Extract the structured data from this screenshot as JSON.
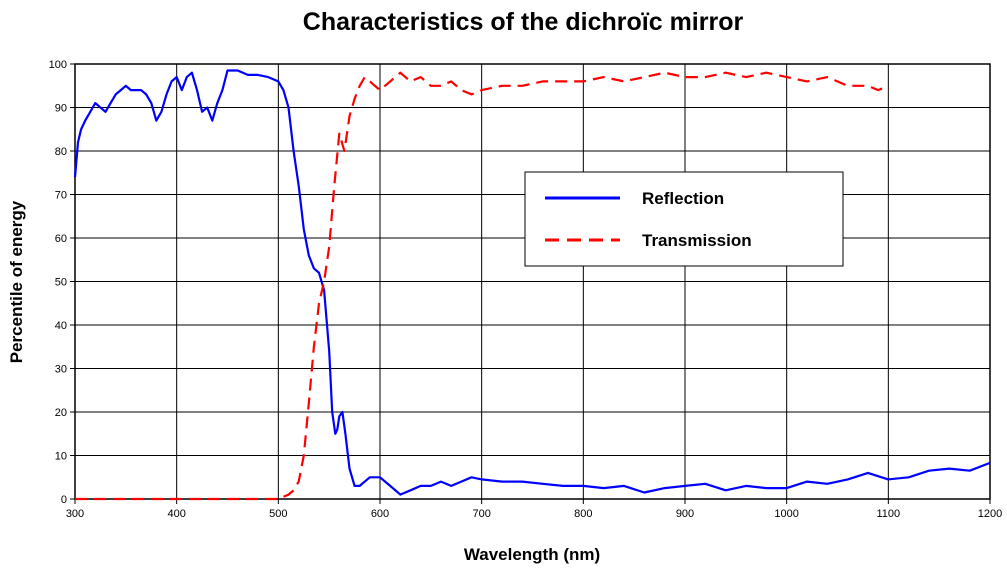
{
  "chart_data": {
    "type": "line",
    "title": "Characteristics of the dichroïc mirror",
    "xlabel": "Wavelength (nm)",
    "ylabel": "Percentile of energy",
    "xlim": [
      300,
      1200
    ],
    "ylim": [
      0,
      100
    ],
    "x_ticks": [
      300,
      400,
      500,
      600,
      700,
      800,
      900,
      1000,
      1100,
      1200
    ],
    "y_ticks": [
      0,
      10,
      20,
      30,
      40,
      50,
      60,
      70,
      80,
      90,
      100
    ],
    "grid": true,
    "legend_position": "right-center",
    "series": [
      {
        "name": "Reflection",
        "color": "#0000ff",
        "style": "solid",
        "x": [
          300,
          303,
          306,
          310,
          315,
          320,
          325,
          330,
          335,
          340,
          345,
          350,
          355,
          360,
          365,
          370,
          375,
          380,
          385,
          390,
          395,
          400,
          405,
          410,
          415,
          420,
          425,
          430,
          435,
          440,
          445,
          450,
          460,
          470,
          480,
          490,
          500,
          505,
          510,
          515,
          520,
          525,
          530,
          535,
          540,
          545,
          550,
          553,
          556,
          558,
          560,
          563,
          566,
          570,
          575,
          580,
          590,
          600,
          610,
          620,
          630,
          640,
          650,
          660,
          670,
          680,
          690,
          700,
          720,
          740,
          760,
          780,
          800,
          820,
          840,
          860,
          880,
          900,
          920,
          940,
          960,
          980,
          1000,
          1020,
          1040,
          1060,
          1080,
          1100,
          1120,
          1140,
          1160,
          1180,
          1200
        ],
        "values": [
          74,
          82,
          85,
          87,
          89,
          91,
          90,
          89,
          91,
          93,
          94,
          95,
          94,
          94,
          94,
          93,
          91,
          87,
          89,
          93,
          96,
          97,
          94,
          97,
          98,
          94,
          89,
          90,
          87,
          91,
          94,
          98.5,
          98.5,
          97.5,
          97.5,
          97,
          96,
          94,
          90,
          80,
          72,
          62,
          56,
          53,
          52,
          48,
          34,
          20,
          15,
          16,
          19,
          20,
          15,
          7,
          3,
          3,
          5,
          5,
          3,
          1,
          2,
          3,
          3,
          4,
          3,
          4,
          5,
          4.5,
          4,
          4,
          3.5,
          3,
          3,
          2.5,
          3,
          1.5,
          2.5,
          3,
          3.5,
          2,
          3,
          2.5,
          2.5,
          4,
          3.5,
          4.5,
          6,
          4.5,
          5,
          6.5,
          7,
          6.5,
          8.3
        ]
      },
      {
        "name": "Transmission",
        "color": "#ff0000",
        "style": "dashed",
        "x": [
          300,
          400,
          490,
          500,
          505,
          510,
          515,
          520,
          525,
          530,
          535,
          540,
          545,
          550,
          555,
          560,
          565,
          570,
          575,
          580,
          585,
          590,
          595,
          600,
          610,
          620,
          630,
          640,
          650,
          660,
          670,
          680,
          690,
          700,
          720,
          740,
          760,
          780,
          800,
          820,
          840,
          860,
          880,
          900,
          920,
          940,
          960,
          980,
          1000,
          1020,
          1040,
          1060,
          1080,
          1090,
          1100
        ],
        "values": [
          0,
          0,
          0,
          0,
          0.5,
          1,
          2,
          4,
          10,
          22,
          35,
          45,
          50,
          58,
          72,
          84,
          80,
          88,
          92,
          95,
          97,
          96,
          95,
          94,
          96,
          98,
          96,
          97,
          95,
          95,
          96,
          94,
          93,
          94,
          95,
          95,
          96,
          96,
          96,
          97,
          96,
          97,
          98,
          97,
          97,
          98,
          97,
          98,
          97,
          96,
          97,
          95,
          95,
          94,
          95
        ]
      }
    ]
  }
}
